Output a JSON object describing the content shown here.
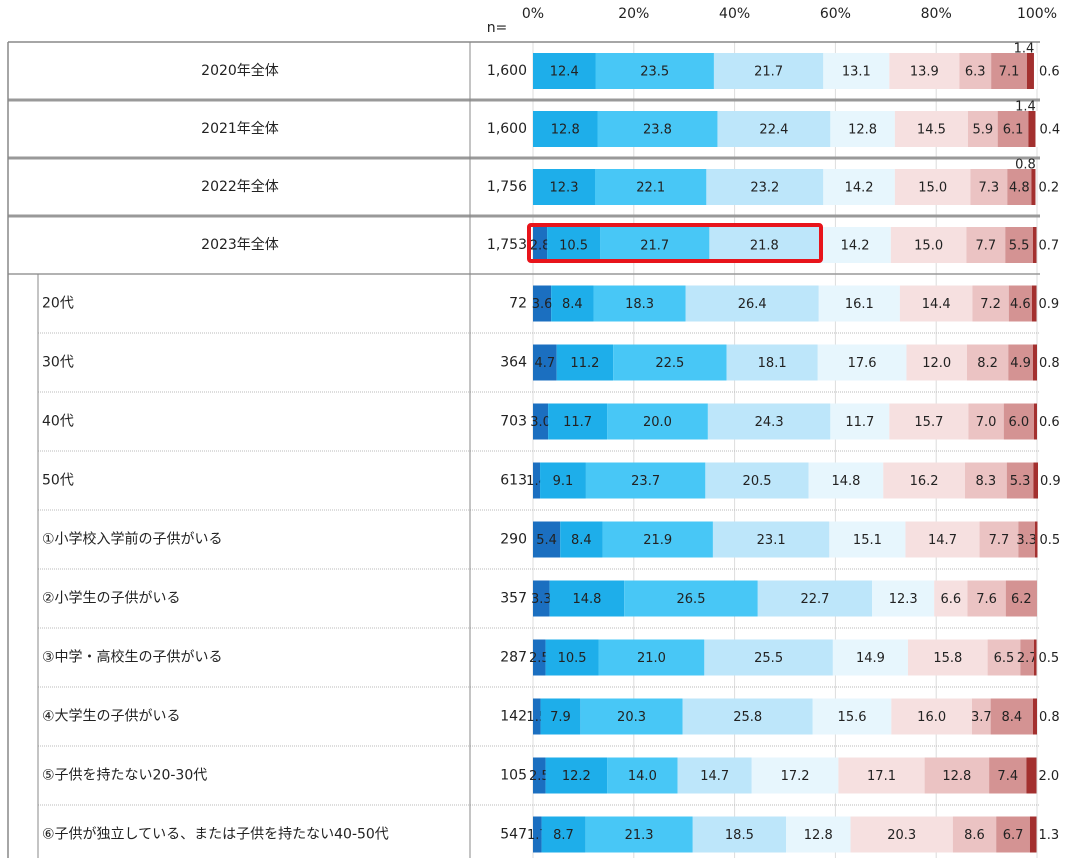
{
  "chart_data": {
    "type": "stacked-bar-table",
    "categories": [
      "2020年全体",
      "2021年全体",
      "2022年全体",
      "2023年全体",
      "20代",
      "30代",
      "40代",
      "50代",
      "①小学校入学前の子供がいる",
      "②小学生の子供がいる",
      "③中学・高校生の子供がいる",
      "④大学生の子供がいる",
      "⑤子供を持たない20-30代",
      "⑥子供が独立している、または子供を持たない40-50代"
    ],
    "group_rows": 4,
    "sample_sizes": {
      "title": "n=",
      "values": [
        1600,
        1600,
        1756,
        1753,
        72,
        364,
        703,
        613,
        290,
        357,
        287,
        142,
        105,
        547
      ],
      "value_labels": [
        "1,600",
        "1,600",
        "1,756",
        "1,753",
        "72",
        "364",
        "703",
        "613",
        "290",
        "357",
        "287",
        "142",
        "105",
        "547"
      ]
    },
    "xlim": [
      0,
      100
    ],
    "xticks": [
      {
        "value": 0,
        "label": "0%"
      },
      {
        "value": 20,
        "label": "20%"
      },
      {
        "value": 40,
        "label": "40%"
      },
      {
        "value": 60,
        "label": "60%"
      },
      {
        "value": 80,
        "label": "80%"
      },
      {
        "value": 100,
        "label": "100%"
      }
    ],
    "grid": true,
    "series": [
      {
        "color": "#1b6fc0",
        "label_color": "#ffffff",
        "values": [
          null,
          null,
          null,
          2.8,
          3.6,
          4.7,
          3.0,
          1.4,
          5.4,
          3.3,
          2.5,
          1.5,
          2.5,
          1.7
        ],
        "value_labels": [
          null,
          null,
          null,
          "2.8",
          "3.6",
          "4.7",
          "3.0",
          "1.4",
          "5.4",
          "3.3",
          "2.5",
          "1.5",
          "2.5",
          "1.7"
        ]
      },
      {
        "color": "#1eaeea",
        "label_color": "#ffffff",
        "values": [
          12.4,
          12.8,
          12.3,
          10.5,
          8.4,
          11.2,
          11.7,
          9.1,
          8.4,
          14.8,
          10.5,
          7.9,
          12.2,
          8.7
        ],
        "value_labels": [
          "12.4",
          "12.8",
          "12.3",
          "10.5",
          "8.4",
          "11.2",
          "11.7",
          "9.1",
          "8.4",
          "14.8",
          "10.5",
          "7.9",
          "12.2",
          "8.7"
        ]
      },
      {
        "color": "#48c7f6",
        "label_color": "#333333",
        "values": [
          23.5,
          23.8,
          22.1,
          21.7,
          18.3,
          22.5,
          20.0,
          23.7,
          21.9,
          26.5,
          21.0,
          20.3,
          14.0,
          21.3
        ],
        "value_labels": [
          "23.5",
          "23.8",
          "22.1",
          "21.7",
          "18.3",
          "22.5",
          "20.0",
          "23.7",
          "21.9",
          "26.5",
          "21.0",
          "20.3",
          "14.0",
          "21.3"
        ]
      },
      {
        "color": "#bde6fa",
        "label_color": "#333333",
        "values": [
          21.7,
          22.4,
          23.2,
          21.8,
          26.4,
          18.1,
          24.3,
          20.5,
          23.1,
          22.7,
          25.5,
          25.8,
          14.7,
          18.5
        ],
        "value_labels": [
          "21.7",
          "22.4",
          "23.2",
          "21.8",
          "26.4",
          "18.1",
          "24.3",
          "20.5",
          "23.1",
          "22.7",
          "25.5",
          "25.8",
          "14.7",
          "18.5"
        ]
      },
      {
        "color": "#e7f6fd",
        "label_color": "#333333",
        "values": [
          13.1,
          12.8,
          14.2,
          14.2,
          16.1,
          17.6,
          11.7,
          14.8,
          15.1,
          12.3,
          14.9,
          15.6,
          17.2,
          12.8
        ],
        "value_labels": [
          "13.1",
          "12.8",
          "14.2",
          "14.2",
          "16.1",
          "17.6",
          "11.7",
          "14.8",
          "15.1",
          "12.3",
          "14.9",
          "15.6",
          "17.2",
          "12.8"
        ]
      },
      {
        "color": "#f6e0e0",
        "label_color": "#333333",
        "values": [
          13.9,
          14.5,
          15.0,
          15.0,
          14.4,
          12.0,
          15.7,
          16.2,
          14.7,
          6.6,
          15.8,
          16.0,
          17.1,
          20.3
        ],
        "value_labels": [
          "13.9",
          "14.5",
          "15.0",
          "15.0",
          "14.4",
          "12.0",
          "15.7",
          "16.2",
          "14.7",
          "6.6",
          "15.8",
          "16.0",
          "17.1",
          "20.3"
        ]
      },
      {
        "color": "#ebc3c3",
        "label_color": "#333333",
        "values": [
          6.3,
          5.9,
          7.3,
          7.7,
          7.2,
          8.2,
          7.0,
          8.3,
          7.7,
          7.6,
          6.5,
          3.7,
          12.8,
          8.6
        ],
        "value_labels": [
          "6.3",
          "5.9",
          "7.3",
          "7.7",
          "7.2",
          "8.2",
          "7.0",
          "8.3",
          "7.7",
          "7.6",
          "6.5",
          "3.7",
          "12.8",
          "8.6"
        ]
      },
      {
        "color": "#d49393",
        "label_color": "#333333",
        "values": [
          7.1,
          6.1,
          4.8,
          5.5,
          4.6,
          4.9,
          6.0,
          5.3,
          3.3,
          6.2,
          2.7,
          8.4,
          7.4,
          6.7
        ],
        "value_labels": [
          "7.1",
          "6.1",
          "4.8",
          "5.5",
          "4.6",
          "4.9",
          "6.0",
          "5.3",
          "3.3",
          "6.2",
          "2.7",
          "8.4",
          "7.4",
          "6.7"
        ]
      },
      {
        "color": "#a3302f",
        "label_color": "#333333",
        "values": [
          1.4,
          1.4,
          0.8,
          0.7,
          0.9,
          0.8,
          0.6,
          0.9,
          0.5,
          null,
          0.5,
          0.8,
          2.0,
          1.3
        ],
        "value_labels": [
          "1.4",
          "1.4",
          "0.8",
          "0.7",
          "0.9",
          "0.8",
          "0.6",
          "0.9",
          "0.5",
          null,
          "0.5",
          "0.8",
          "2.0",
          "1.3"
        ]
      },
      {
        "color": "#ffffff",
        "label_color": "#333333",
        "values": [
          0.6,
          0.4,
          0.2,
          null,
          null,
          null,
          null,
          null,
          null,
          null,
          null,
          null,
          null,
          null
        ],
        "value_labels": [
          "0.6",
          "0.4",
          "0.2",
          null,
          null,
          null,
          null,
          null,
          null,
          null,
          null,
          null,
          null,
          null
        ]
      }
    ]
  }
}
